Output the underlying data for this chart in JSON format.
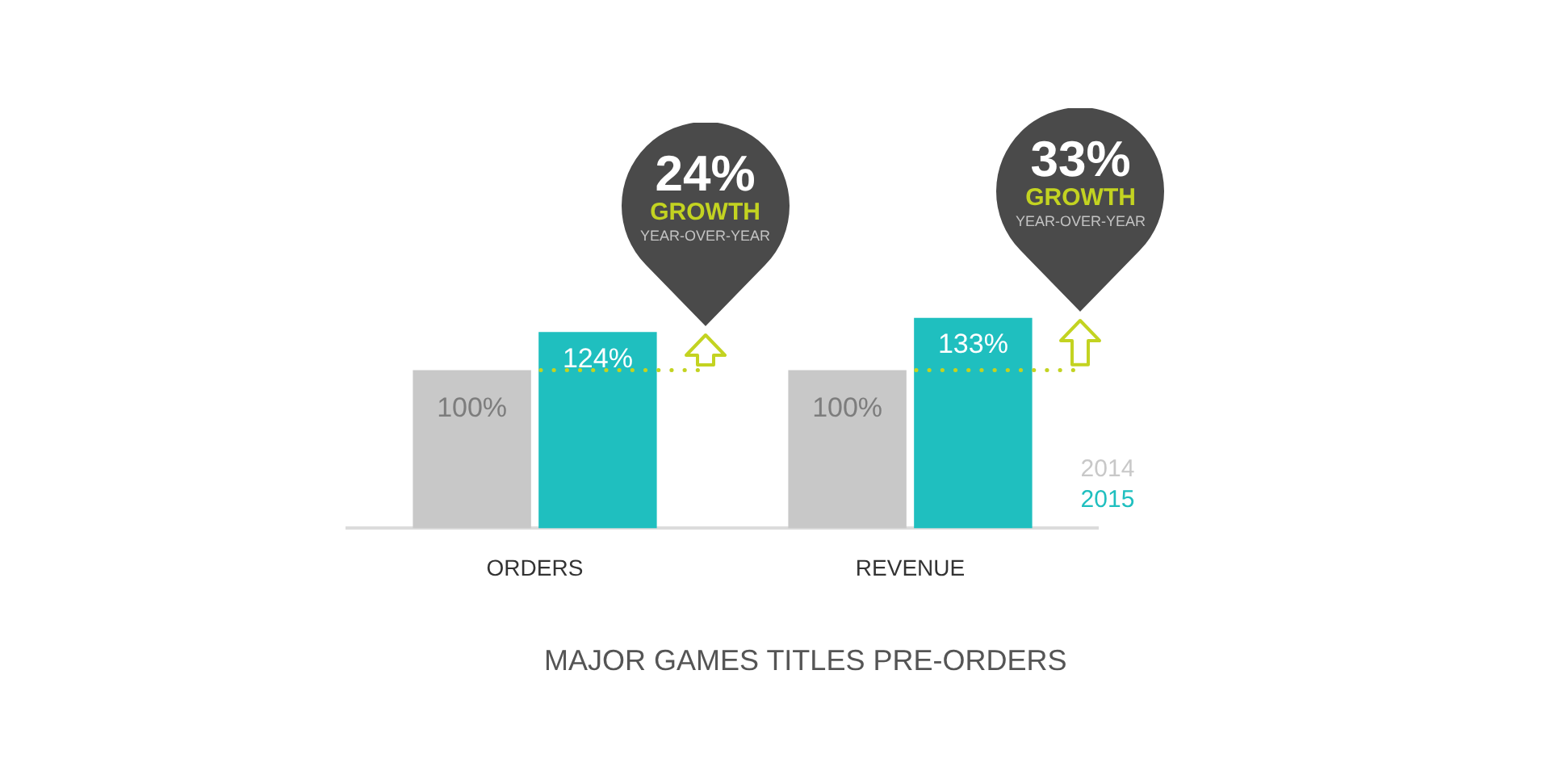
{
  "chart_data": {
    "type": "bar",
    "title": "MAJOR GAMES TITLES PRE-ORDERS",
    "categories": [
      "ORDERS",
      "REVENUE"
    ],
    "series": [
      {
        "name": "2014",
        "color": "#c8c8c8",
        "values": [
          100,
          100
        ],
        "value_labels": [
          "100%",
          "100%"
        ]
      },
      {
        "name": "2015",
        "color": "#1fbfbf",
        "values": [
          124,
          133
        ],
        "value_labels": [
          "124%",
          "133%"
        ]
      }
    ],
    "ref_lines": [
      {
        "axis": "y",
        "value": 100,
        "color": "#c3d321",
        "line_style": "dotted"
      }
    ],
    "annotations": [
      {
        "text": "24%\nGROWTH\nYEAR-OVER-YEAR",
        "x": "ORDERS",
        "y": 124
      },
      {
        "text": "33%\nGROWTH\nYEAR-OVER-YEAR",
        "x": "REVENUE",
        "y": 133
      }
    ],
    "legend": "bottom right"
  }
}
